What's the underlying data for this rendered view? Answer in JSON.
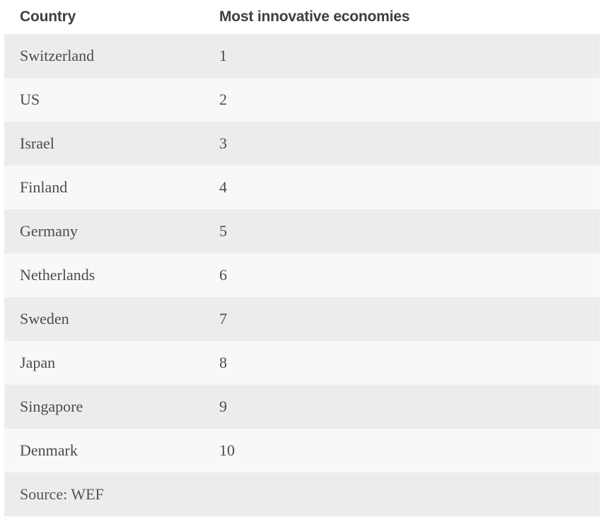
{
  "table": {
    "columns": [
      "Country",
      "Most innovative economies"
    ],
    "rows": [
      {
        "country": "Switzerland",
        "rank": "1"
      },
      {
        "country": "US",
        "rank": "2"
      },
      {
        "country": "Israel",
        "rank": "3"
      },
      {
        "country": "Finland",
        "rank": "4"
      },
      {
        "country": "Germany",
        "rank": "5"
      },
      {
        "country": "Netherlands",
        "rank": "6"
      },
      {
        "country": "Sweden",
        "rank": "7"
      },
      {
        "country": "Japan",
        "rank": "8"
      },
      {
        "country": "Singapore",
        "rank": "9"
      },
      {
        "country": "Denmark",
        "rank": "10"
      }
    ],
    "source": "Source: WEF"
  },
  "chart_data": {
    "type": "table",
    "title": "Most innovative economies",
    "columns": [
      "Country",
      "Most innovative economies"
    ],
    "categories": [
      "Switzerland",
      "US",
      "Israel",
      "Finland",
      "Germany",
      "Netherlands",
      "Sweden",
      "Japan",
      "Singapore",
      "Denmark"
    ],
    "values": [
      1,
      2,
      3,
      4,
      5,
      6,
      7,
      8,
      9,
      10
    ],
    "source": "Source: WEF",
    "layout": {
      "striped_rows": true,
      "stripe_color": "#ececec",
      "alt_row_color": "#f8f8f8",
      "header_background": "#ffffff"
    }
  },
  "colors": {
    "header_text": "#3f3f3f",
    "body_text": "#4c4c4c",
    "source_text": "#555555",
    "stripe": "#ececec",
    "alt_stripe": "#f8f8f8",
    "background": "#ffffff"
  }
}
